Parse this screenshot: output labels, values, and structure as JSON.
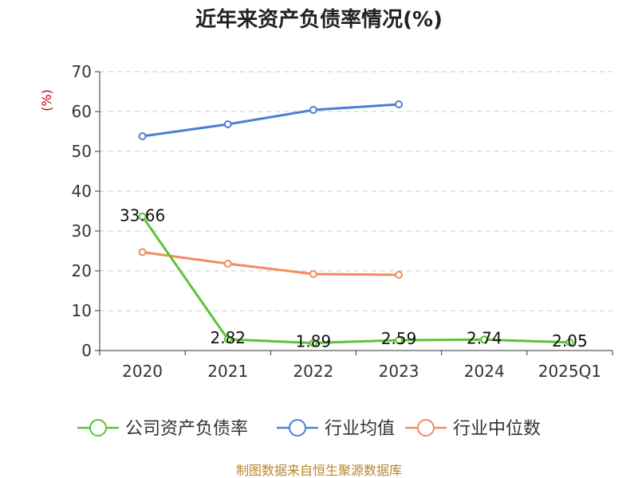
{
  "chart_data": {
    "type": "line",
    "title": "近年来资产负债率情况(%)",
    "ylabel": "(%)",
    "xlabel": "",
    "categories": [
      "2020",
      "2021",
      "2022",
      "2023",
      "2024",
      "2025Q1"
    ],
    "ylim": [
      0,
      70
    ],
    "yticks": [
      0,
      10,
      20,
      30,
      40,
      50,
      60,
      70
    ],
    "grid": true,
    "legend_position": "bottom",
    "series": [
      {
        "name": "公司资产负债率",
        "color": "#5cc337",
        "values": [
          33.66,
          2.82,
          1.89,
          2.59,
          2.74,
          2.05
        ],
        "labels": [
          "33.66",
          "2.82",
          "1.89",
          "2.59",
          "2.74",
          "2.05"
        ]
      },
      {
        "name": "行业均值",
        "color": "#4b7fd6",
        "values": [
          53.8,
          56.8,
          60.4,
          61.8,
          null,
          null
        ]
      },
      {
        "name": "行业中位数",
        "color": "#f28c5e",
        "values": [
          24.7,
          21.8,
          19.2,
          19.0,
          null,
          null
        ]
      }
    ]
  },
  "source_text": "制图数据来自恒生聚源数据库"
}
